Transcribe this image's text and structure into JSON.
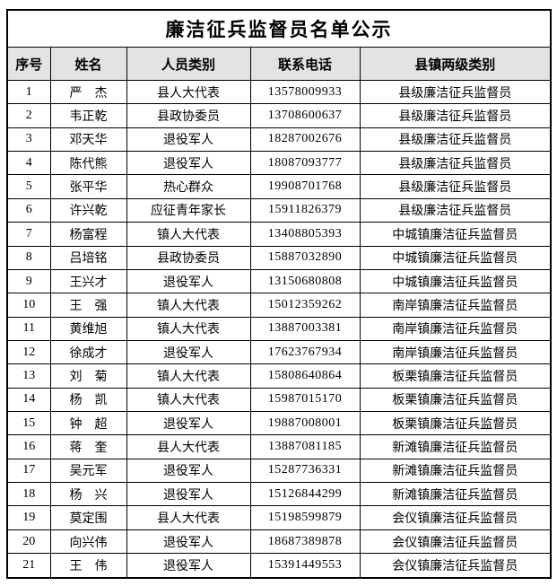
{
  "title": "廉洁征兵监督员名单公示",
  "colors": {
    "header_bg": "#e3e3e3",
    "border": "#000000",
    "text": "#000000",
    "page_bg": "#ffffff"
  },
  "table": {
    "headers": [
      "序号",
      "姓名",
      "人员类别",
      "联系电话",
      "县镇两级类别"
    ],
    "rows": [
      [
        "1",
        "严　杰",
        "县人大代表",
        "13578009933",
        "县级廉洁征兵监督员"
      ],
      [
        "2",
        "韦正乾",
        "县政协委员",
        "13708600637",
        "县级廉洁征兵监督员"
      ],
      [
        "3",
        "邓天华",
        "退役军人",
        "18287002676",
        "县级廉洁征兵监督员"
      ],
      [
        "4",
        "陈代熊",
        "退役军人",
        "18087093777",
        "县级廉洁征兵监督员"
      ],
      [
        "5",
        "张平华",
        "热心群众",
        "19908701768",
        "县级廉洁征兵监督员"
      ],
      [
        "6",
        "许兴乾",
        "应征青年家长",
        "15911826379",
        "县级廉洁征兵监督员"
      ],
      [
        "7",
        "杨富程",
        "镇人大代表",
        "13408805393",
        "中城镇廉洁征兵监督员"
      ],
      [
        "8",
        "吕培铭",
        "县政协委员",
        "15887032890",
        "中城镇廉洁征兵监督员"
      ],
      [
        "9",
        "王兴才",
        "退役军人",
        "13150680808",
        "中城镇廉洁征兵监督员"
      ],
      [
        "10",
        "王　强",
        "镇人大代表",
        "15012359262",
        "南岸镇廉洁征兵监督员"
      ],
      [
        "11",
        "黄维旭",
        "镇人大代表",
        "13887003381",
        "南岸镇廉洁征兵监督员"
      ],
      [
        "12",
        "徐成才",
        "退役军人",
        "17623767934",
        "南岸镇廉洁征兵监督员"
      ],
      [
        "13",
        "刘　菊",
        "镇人大代表",
        "15808640864",
        "板栗镇廉洁征兵监督员"
      ],
      [
        "14",
        "杨　凯",
        "镇人大代表",
        "15987015170",
        "板栗镇廉洁征兵监督员"
      ],
      [
        "15",
        "钟　超",
        "退役军人",
        "19887008001",
        "板栗镇廉洁征兵监督员"
      ],
      [
        "16",
        "蒋　奎",
        "县人大代表",
        "13887081185",
        "新滩镇廉洁征兵监督员"
      ],
      [
        "17",
        "吴元军",
        "退役军人",
        "15287736331",
        "新滩镇廉洁征兵监督员"
      ],
      [
        "18",
        "杨　兴",
        "退役军人",
        "15126844299",
        "新滩镇廉洁征兵监督员"
      ],
      [
        "19",
        "莫定围",
        "县人大代表",
        "15198599879",
        "会仪镇廉洁征兵监督员"
      ],
      [
        "20",
        "向兴伟",
        "退役军人",
        "18687389878",
        "会仪镇廉洁征兵监督员"
      ],
      [
        "21",
        "王　伟",
        "退役军人",
        "15391449553",
        "会仪镇廉洁征兵监督员"
      ]
    ]
  }
}
